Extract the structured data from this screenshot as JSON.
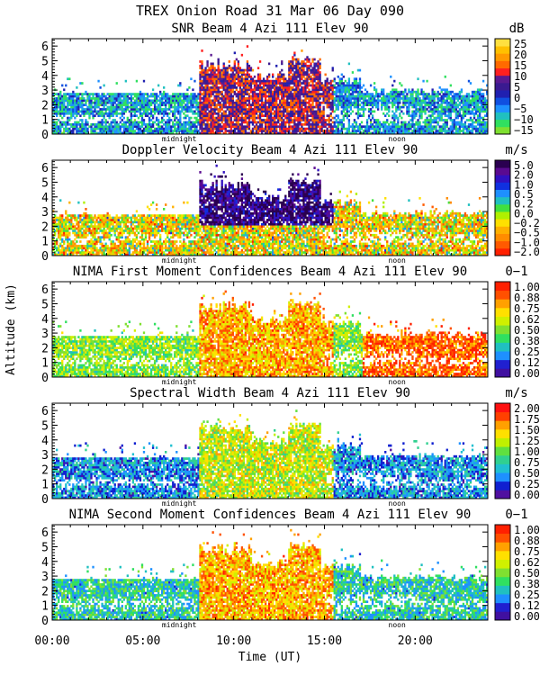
{
  "title": "TREX Onion Road  31 Mar 06 Day 090",
  "y_axis_label": "Altitude (km)",
  "x_axis_label": "Time (UT)",
  "x_ticks": [
    "00:00",
    "05:00",
    "10:00",
    "15:00",
    "20:00"
  ],
  "x_marker_labels": [
    "midnight",
    "noon"
  ],
  "chart_data": [
    {
      "type": "heatmap",
      "title": "SNR Beam 4 Azi 111 Elev 90",
      "unit": "dB",
      "x_range_hours": [
        0,
        24
      ],
      "ylim": [
        0,
        6.5
      ],
      "y_ticks": [
        "0",
        "1",
        "2",
        "3",
        "4",
        "5",
        "6"
      ],
      "colorbar_ticks": [
        "25",
        "20",
        "15",
        "10",
        "5",
        "0",
        "−5",
        "−10",
        "−15"
      ],
      "colors": [
        "#7fe030",
        "#30e060",
        "#20c0c0",
        "#1e90ff",
        "#1050e0",
        "#2020b0",
        "#3a1a90",
        "#5a1a90",
        "#ff2020",
        "#ff6a00",
        "#ff9a00",
        "#ffc000",
        "#ffe040"
      ]
    },
    {
      "type": "heatmap",
      "title": "Doppler Velocity Beam 4 Azi 111 Elev 90",
      "unit": "m/s",
      "x_range_hours": [
        0,
        24
      ],
      "ylim": [
        0,
        6.5
      ],
      "y_ticks": [
        "0",
        "1",
        "2",
        "3",
        "4",
        "5",
        "6"
      ],
      "colorbar_ticks": [
        "5.0",
        "2.0",
        "1.0",
        "0.5",
        "0.2",
        "0.0",
        "−0.2",
        "−0.5",
        "−1.0",
        "−2.0"
      ],
      "colors": [
        "#ff2000",
        "#ff5a00",
        "#ff8c00",
        "#ffb000",
        "#ffe000",
        "#b0f000",
        "#40e040",
        "#20c0c0",
        "#1e90ff",
        "#1030e0",
        "#3010c0",
        "#5a0a90",
        "#2a0050"
      ]
    },
    {
      "type": "heatmap",
      "title": "NIMA First Moment Confidences Beam 4 Azi 111 Elev 90",
      "unit": "0−1",
      "x_range_hours": [
        0,
        24
      ],
      "ylim": [
        0,
        6.5
      ],
      "y_ticks": [
        "0",
        "1",
        "2",
        "3",
        "4",
        "5",
        "6"
      ],
      "colorbar_ticks": [
        "1.00",
        "0.88",
        "0.75",
        "0.62",
        "0.50",
        "0.38",
        "0.25",
        "0.12",
        "0.00"
      ],
      "colors": [
        "#4010a0",
        "#2020d0",
        "#1e90ff",
        "#20c0c0",
        "#30e060",
        "#80e030",
        "#d0f000",
        "#ffe000",
        "#ffa000",
        "#ff5000",
        "#ff2000"
      ]
    },
    {
      "type": "heatmap",
      "title": "Spectral Width Beam 4 Azi 111 Elev 90",
      "unit": "m/s",
      "x_range_hours": [
        0,
        24
      ],
      "ylim": [
        0,
        6.5
      ],
      "y_ticks": [
        "0",
        "1",
        "2",
        "3",
        "4",
        "5",
        "6"
      ],
      "colorbar_ticks": [
        "2.00",
        "1.75",
        "1.50",
        "1.25",
        "1.00",
        "0.75",
        "0.50",
        "0.25",
        "0.00"
      ],
      "colors": [
        "#5010a0",
        "#1020d0",
        "#1e90ff",
        "#20c0d0",
        "#30d090",
        "#60e040",
        "#c0f000",
        "#ffe000",
        "#ffa000",
        "#ff4000",
        "#ff1010"
      ]
    },
    {
      "type": "heatmap",
      "title": "NIMA Second Moment Confidences Beam 4 Azi 111 Elev 90",
      "unit": "0−1",
      "x_range_hours": [
        0,
        24
      ],
      "ylim": [
        0,
        6.5
      ],
      "y_ticks": [
        "0",
        "1",
        "2",
        "3",
        "4",
        "5",
        "6"
      ],
      "colorbar_ticks": [
        "1.00",
        "0.88",
        "0.75",
        "0.62",
        "0.50",
        "0.38",
        "0.25",
        "0.12",
        "0.00"
      ],
      "colors": [
        "#4010a0",
        "#2020d0",
        "#1e90ff",
        "#20c0c0",
        "#30e060",
        "#80e030",
        "#d0f000",
        "#ffe000",
        "#ffa000",
        "#ff5000",
        "#ff2000"
      ]
    }
  ]
}
